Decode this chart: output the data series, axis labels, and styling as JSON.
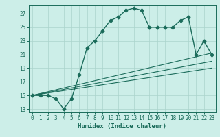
{
  "title": "",
  "xlabel": "Humidex (Indice chaleur)",
  "bg_color": "#cceee8",
  "grid_color": "#aad4cc",
  "line_color": "#1a6b5a",
  "xlim": [
    -0.5,
    23.5
  ],
  "ylim": [
    12.5,
    28.2
  ],
  "xticks": [
    0,
    1,
    2,
    3,
    4,
    5,
    6,
    7,
    8,
    9,
    10,
    11,
    12,
    13,
    14,
    15,
    16,
    17,
    18,
    19,
    20,
    21,
    22,
    23
  ],
  "yticks": [
    13,
    15,
    17,
    19,
    21,
    23,
    25,
    27
  ],
  "main_x": [
    0,
    1,
    2,
    3,
    4,
    5,
    6,
    7,
    8,
    9,
    10,
    11,
    12,
    13,
    14,
    15,
    16,
    17,
    18,
    19,
    20,
    21,
    22,
    23
  ],
  "main_y": [
    15,
    15,
    15,
    14.5,
    13,
    14.5,
    18,
    22,
    23,
    24.5,
    26,
    26.5,
    27.5,
    27.8,
    27.5,
    25,
    25,
    25,
    25,
    26,
    26.5,
    21,
    23,
    21
  ],
  "line1_x": [
    0,
    23
  ],
  "line1_y": [
    15,
    21.2
  ],
  "line2_x": [
    0,
    23
  ],
  "line2_y": [
    15,
    20.0
  ],
  "line3_x": [
    0,
    23
  ],
  "line3_y": [
    15,
    19.0
  ],
  "marker": "D",
  "markersize": 2.5,
  "linewidth": 1.0
}
